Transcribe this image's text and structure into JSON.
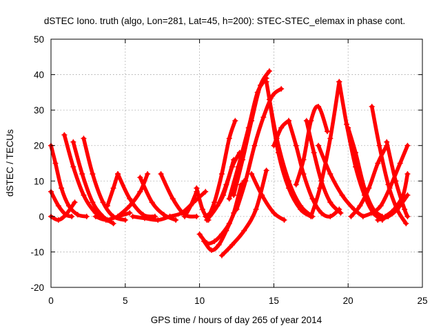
{
  "chart_data": {
    "type": "scatter",
    "title": "dSTEC Iono. truth (algo, Lon=281, Lat=45, h=200): STEC-STEC_elemax in phase cont.",
    "xlabel": "GPS time / hours of day 265 of year 2014",
    "ylabel": "dSTEC  / TECUs",
    "xlim": [
      0,
      25
    ],
    "ylim": [
      -20,
      50
    ],
    "xticks": [
      "0",
      "5",
      "10",
      "15",
      "20",
      "25"
    ],
    "yticks": [
      "-20",
      "-10",
      "0",
      "10",
      "20",
      "30",
      "40",
      "50"
    ],
    "grid": true,
    "marker": "+",
    "color": "#ff0000",
    "series": [
      {
        "x": [
          0.0,
          0.3,
          0.7,
          1.2,
          1.8,
          2.4
        ],
        "y": [
          20,
          15,
          8,
          3,
          0.5,
          0
        ]
      },
      {
        "x": [
          0.0,
          0.5,
          1.0,
          1.4
        ],
        "y": [
          7,
          3,
          0.5,
          0
        ]
      },
      {
        "x": [
          0.0,
          0.5,
          1.0,
          1.6
        ],
        "y": [
          0,
          -1,
          0.5,
          4
        ]
      },
      {
        "x": [
          0.9,
          1.5,
          2.2,
          3.0,
          3.8
        ],
        "y": [
          23,
          14,
          6,
          1,
          -1
        ]
      },
      {
        "x": [
          1.5,
          2.1,
          2.8,
          3.5,
          4.2
        ],
        "y": [
          21,
          12,
          4,
          0,
          -2
        ]
      },
      {
        "x": [
          2.2,
          2.8,
          3.5,
          4.2,
          5.0
        ],
        "y": [
          22,
          12,
          4,
          0,
          -1
        ]
      },
      {
        "x": [
          3.0,
          3.7,
          4.5,
          5.3
        ],
        "y": [
          0,
          -1,
          0,
          1
        ]
      },
      {
        "x": [
          3.8,
          4.2,
          4.5
        ],
        "y": [
          3,
          8,
          12
        ]
      },
      {
        "x": [
          4.5,
          5.3,
          6.2,
          7.0
        ],
        "y": [
          12,
          5,
          0.5,
          0
        ]
      },
      {
        "x": [
          4.5,
          5.3,
          6.0,
          6.5
        ],
        "y": [
          0,
          3,
          7,
          12
        ]
      },
      {
        "x": [
          5.5,
          6.3,
          7.2,
          8.0
        ],
        "y": [
          0,
          -0.5,
          -1,
          0
        ]
      },
      {
        "x": [
          6.0,
          6.8,
          7.6,
          8.4
        ],
        "y": [
          11,
          4,
          0.5,
          -1
        ]
      },
      {
        "x": [
          7.4,
          8.2,
          9.0,
          9.8
        ],
        "y": [
          12,
          5,
          0.5,
          0
        ]
      },
      {
        "x": [
          8.0,
          8.8,
          9.6,
          10.4
        ],
        "y": [
          0,
          1,
          4,
          7
        ]
      },
      {
        "x": [
          9.0,
          9.4,
          9.8
        ],
        "y": [
          0,
          3,
          7
        ]
      },
      {
        "x": [
          9.8,
          10.2,
          10.6
        ],
        "y": [
          8,
          2,
          -1
        ]
      },
      {
        "x": [
          10.0,
          10.5,
          11.0,
          11.5,
          12.0,
          12.5,
          13.0
        ],
        "y": [
          -5,
          -7.5,
          -7,
          -5,
          -2,
          3,
          10
        ]
      },
      {
        "x": [
          10.3,
          10.8,
          11.3,
          11.8,
          12.3,
          12.8
        ],
        "y": [
          -7,
          -9.5,
          -8,
          -4,
          1,
          9
        ]
      },
      {
        "x": [
          11.5,
          12.2,
          13.0,
          13.8,
          14.5
        ],
        "y": [
          -11,
          -8,
          -4,
          2,
          13
        ]
      },
      {
        "x": [
          10.5,
          11.0,
          11.5,
          12.0,
          12.4
        ],
        "y": [
          -1,
          4,
          12,
          22,
          27
        ]
      },
      {
        "x": [
          10.4,
          11.0,
          11.6,
          12.2,
          12.7
        ],
        "y": [
          0,
          2,
          6,
          14,
          18
        ]
      },
      {
        "x": [
          10.5,
          11.2,
          11.8,
          12.3
        ],
        "y": [
          -1,
          3,
          9,
          16
        ]
      },
      {
        "x": [
          12.0,
          12.6,
          13.3,
          13.9,
          14.5
        ],
        "y": [
          5,
          14,
          25,
          35,
          39
        ]
      },
      {
        "x": [
          12.3,
          12.9,
          13.5,
          14.1,
          14.7
        ],
        "y": [
          6,
          16,
          27,
          37,
          41
        ]
      },
      {
        "x": [
          12.5,
          13.1,
          13.7,
          14.3,
          14.9,
          15.5
        ],
        "y": [
          2,
          10,
          20,
          28,
          34,
          36
        ]
      },
      {
        "x": [
          14.5,
          15.2,
          16.0,
          16.8,
          17.6
        ],
        "y": [
          38,
          22,
          10,
          3,
          0
        ]
      },
      {
        "x": [
          14.7,
          15.3,
          16.0,
          16.8,
          17.5
        ],
        "y": [
          33,
          18,
          8,
          2,
          0
        ]
      },
      {
        "x": [
          13.5,
          14.2,
          15.0,
          15.7
        ],
        "y": [
          12,
          6,
          1,
          -1
        ]
      },
      {
        "x": [
          15.0,
          15.5,
          16.0
        ],
        "y": [
          20,
          25,
          27
        ]
      },
      {
        "x": [
          16.0,
          16.5,
          17.0,
          17.6,
          18.2,
          18.8,
          19.4
        ],
        "y": [
          27,
          20,
          12,
          5,
          1,
          0,
          2
        ]
      },
      {
        "x": [
          16.5,
          17.0,
          17.5,
          18.0,
          18.6
        ],
        "y": [
          9,
          16,
          27,
          31,
          24
        ]
      },
      {
        "x": [
          17.2,
          17.7,
          18.2,
          18.8,
          19.5
        ],
        "y": [
          27,
          18,
          10,
          4,
          1
        ]
      },
      {
        "x": [
          17.5,
          18.1,
          18.8,
          19.4
        ],
        "y": [
          0,
          8,
          22,
          38
        ]
      },
      {
        "x": [
          19.4,
          19.9,
          20.5,
          21.1,
          21.7,
          22.3
        ],
        "y": [
          38,
          26,
          14,
          6,
          1,
          -1
        ]
      },
      {
        "x": [
          18.0,
          18.8,
          19.6,
          20.4,
          21.0
        ],
        "y": [
          20,
          12,
          6,
          2,
          0
        ]
      },
      {
        "x": [
          20.0,
          20.5,
          21.1,
          21.7,
          22.3
        ],
        "y": [
          25,
          18,
          8,
          2,
          0
        ]
      },
      {
        "x": [
          20.2,
          20.8,
          21.4,
          22.0,
          22.6
        ],
        "y": [
          0,
          3,
          8,
          15,
          20
        ]
      },
      {
        "x": [
          21.6,
          22.1,
          22.7,
          23.3,
          23.9
        ],
        "y": [
          31,
          20,
          9,
          2,
          -2
        ]
      },
      {
        "x": [
          21.0,
          21.6,
          22.2,
          22.8,
          23.5,
          24.0
        ],
        "y": [
          0,
          1,
          3,
          8,
          15,
          20
        ]
      },
      {
        "x": [
          22.6,
          23.2,
          23.8,
          24.0
        ],
        "y": [
          21,
          10,
          2,
          0
        ]
      },
      {
        "x": [
          22.5,
          23.1,
          23.7,
          24.0
        ],
        "y": [
          0,
          2,
          6,
          12
        ]
      },
      {
        "x": [
          22.0,
          22.7,
          23.3,
          24.0
        ],
        "y": [
          -1,
          0,
          2,
          6
        ]
      }
    ]
  }
}
